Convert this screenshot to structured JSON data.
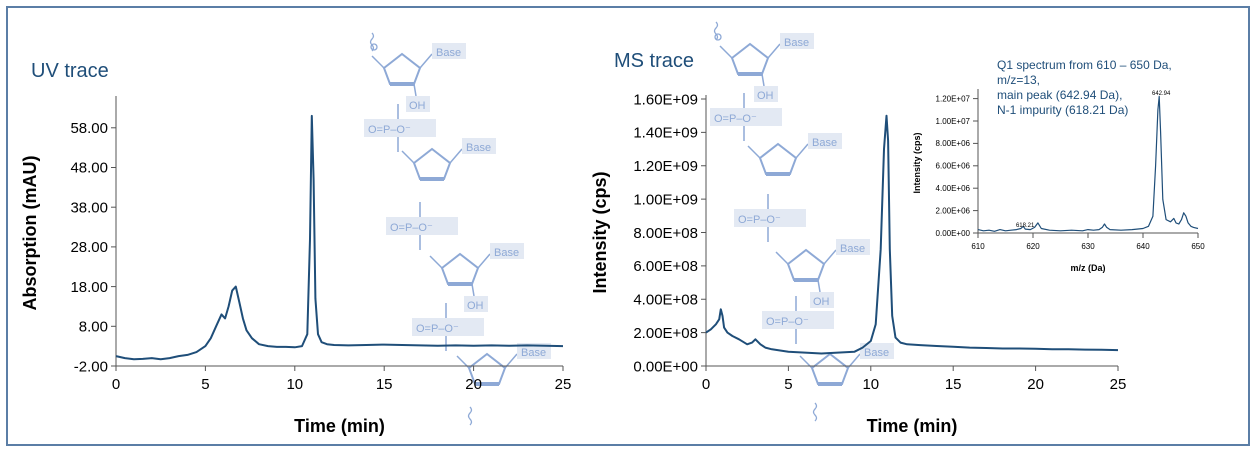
{
  "colors": {
    "trace": "#1f4e79",
    "molecule": "#8ea9d6",
    "label_box": "#e3e9f3",
    "frame": "#5b7ea6",
    "axis": "#000000"
  },
  "panels": {
    "uv_title": "UV trace",
    "ms_title": "MS trace"
  },
  "inset": {
    "caption": [
      "Q1 spectrum from 610 – 650 Da,",
      "m/z=13,",
      "main peak (642.94 Da),",
      "N-1 impurity (618.21 Da)"
    ]
  },
  "molecule": {
    "base_label": "Base",
    "oh_label": "OH",
    "phosphate_label": "O=P–O⁻"
  },
  "chart_data": [
    {
      "id": "uv",
      "type": "line",
      "title": "UV trace",
      "xlabel": "Time (min)",
      "ylabel": "Absorption (mAU)",
      "xlim": [
        0,
        25
      ],
      "ylim": [
        -2,
        65
      ],
      "xticks": [
        0,
        5,
        10,
        15,
        20,
        25
      ],
      "yticks": [
        -2,
        8,
        18,
        28,
        38,
        48,
        58
      ],
      "xtick_labels": [
        "0",
        "5",
        "10",
        "15",
        "20",
        "25"
      ],
      "ytick_labels": [
        "-2.00",
        "8.00",
        "18.00",
        "28.00",
        "38.00",
        "48.00",
        "58.00"
      ],
      "grid": false,
      "series": [
        {
          "x": [
            0,
            0.5,
            1,
            1.5,
            2,
            2.5,
            3,
            3.5,
            4,
            4.5,
            5,
            5.3,
            5.6,
            5.9,
            6.1,
            6.3,
            6.5,
            6.7,
            6.9,
            7.1,
            7.3,
            7.6,
            8,
            8.5,
            9,
            9.5,
            10,
            10.4,
            10.7,
            10.85,
            10.95,
            11.05,
            11.15,
            11.3,
            11.5,
            11.8,
            12.2,
            13,
            14,
            15,
            16,
            17,
            18,
            19,
            20,
            21,
            22,
            23,
            24,
            25
          ],
          "y": [
            0.5,
            0,
            -0.3,
            -0.2,
            0,
            -0.3,
            0,
            0.5,
            0.8,
            1.5,
            3,
            5,
            8,
            11,
            10,
            13,
            17,
            18,
            14,
            10,
            7,
            5,
            3.5,
            3,
            2.8,
            2.8,
            2.7,
            3,
            6,
            30,
            61,
            45,
            15,
            6,
            4,
            3.5,
            3.3,
            3.2,
            3.3,
            3.4,
            3.3,
            3.2,
            3.1,
            3.2,
            3.1,
            3.2,
            3.1,
            3.2,
            3.1,
            3
          ]
        }
      ]
    },
    {
      "id": "ms",
      "type": "line",
      "title": "MS trace",
      "xlabel": "Time (min)",
      "ylabel": "Intensity (cps)",
      "xlim": [
        0,
        25
      ],
      "ylim": [
        0,
        1600000000
      ],
      "xticks": [
        0,
        5,
        10,
        15,
        20,
        25
      ],
      "yticks": [
        0,
        200000000,
        400000000,
        600000000,
        800000000,
        1000000000,
        1200000000,
        1400000000,
        1600000000
      ],
      "xtick_labels": [
        "0",
        "5",
        "10",
        "15",
        "20",
        "25"
      ],
      "ytick_labels": [
        "0.00E+00",
        "2.00E+08",
        "4.00E+08",
        "6.00E+08",
        "8.00E+08",
        "1.00E+09",
        "1.20E+09",
        "1.40E+09",
        "1.60E+09"
      ],
      "grid": false,
      "series": [
        {
          "x": [
            0,
            0.3,
            0.6,
            0.8,
            0.9,
            1.0,
            1.1,
            1.3,
            1.6,
            2,
            2.5,
            2.8,
            3,
            3.3,
            3.6,
            4,
            5,
            6,
            7,
            8,
            9,
            9.5,
            10,
            10.3,
            10.6,
            10.8,
            10.95,
            11.05,
            11.15,
            11.3,
            11.5,
            11.8,
            12.2,
            13,
            14,
            15,
            16,
            17,
            18,
            19,
            20,
            21,
            22,
            23,
            24,
            25
          ],
          "y": [
            200000000,
            220000000,
            250000000,
            280000000,
            340000000,
            300000000,
            230000000,
            200000000,
            180000000,
            160000000,
            130000000,
            140000000,
            160000000,
            130000000,
            110000000,
            100000000,
            85000000,
            80000000,
            75000000,
            80000000,
            85000000,
            110000000,
            150000000,
            250000000,
            700000000,
            1300000000,
            1500000000,
            1350000000,
            700000000,
            300000000,
            170000000,
            140000000,
            130000000,
            125000000,
            120000000,
            115000000,
            110000000,
            108000000,
            105000000,
            105000000,
            103000000,
            100000000,
            100000000,
            98000000,
            97000000,
            95000000
          ]
        }
      ]
    },
    {
      "id": "inset",
      "type": "line",
      "title": "",
      "xlabel": "m/z (Da)",
      "ylabel": "Intensity (cps)",
      "xlim": [
        610,
        650
      ],
      "ylim": [
        0,
        12500000
      ],
      "xticks": [
        610,
        620,
        630,
        640,
        650
      ],
      "yticks": [
        0,
        2000000,
        4000000,
        6000000,
        8000000,
        10000000,
        12000000
      ],
      "xtick_labels": [
        "610",
        "620",
        "630",
        "640",
        "650"
      ],
      "ytick_labels": [
        "0.00E+00",
        "2.00E+06",
        "4.00E+06",
        "6.00E+06",
        "8.00E+06",
        "1.00E+07",
        "1.20E+07"
      ],
      "grid": false,
      "annotations": [
        {
          "x": 618.21,
          "y": 700000,
          "text": "618.21"
        },
        {
          "x": 642.94,
          "y": 12500000,
          "text": "642.94"
        }
      ],
      "series": [
        {
          "x": [
            610,
            611,
            612,
            613,
            614,
            615,
            616,
            617,
            617.8,
            618.21,
            618.6,
            619.5,
            620.3,
            620.9,
            621.5,
            623,
            625,
            627,
            629,
            630,
            631,
            632,
            632.6,
            633,
            633.4,
            634,
            636,
            638,
            640,
            641,
            641.8,
            642.3,
            642.7,
            642.94,
            643.2,
            643.6,
            644.2,
            645,
            645.6,
            646,
            646.5,
            647,
            647.4,
            647.8,
            648.2,
            648.7,
            649.2,
            650
          ],
          "y": [
            300000,
            200000,
            250000,
            150000,
            300000,
            200000,
            250000,
            300000,
            400000,
            600000,
            350000,
            300000,
            500000,
            900000,
            400000,
            250000,
            200000,
            250000,
            200000,
            300000,
            250000,
            300000,
            500000,
            800000,
            500000,
            300000,
            250000,
            300000,
            400000,
            600000,
            1500000,
            6000000,
            11000000,
            12200000,
            9000000,
            3000000,
            1200000,
            1000000,
            1300000,
            900000,
            800000,
            1200000,
            1800000,
            1500000,
            900000,
            600000,
            500000,
            400000
          ]
        }
      ]
    }
  ]
}
